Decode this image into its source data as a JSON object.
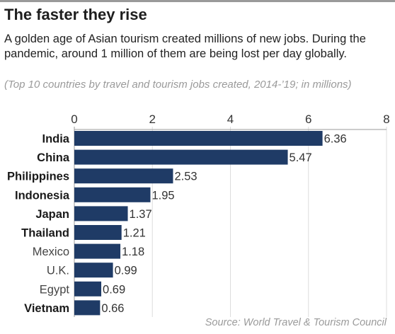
{
  "header": {
    "title": "The faster they rise",
    "subtitle": "A golden age of Asian tourism created millions of new jobs. During the pandemic, around 1 million of them are being lost per day globally.",
    "note": "(Top 10 countries by travel and tourism jobs created, 2014-’19; in millions)"
  },
  "footer": {
    "source": "Source: World Travel & Tourism Council"
  },
  "colors": {
    "bar": "#1f3b66",
    "axis": "#999999",
    "gridline": "#dddddd"
  },
  "chart_data": {
    "type": "bar",
    "orientation": "horizontal",
    "categories": [
      "India",
      "China",
      "Philippines",
      "Indonesia",
      "Japan",
      "Thailand",
      "Mexico",
      "U.K.",
      "Egypt",
      "Vietnam"
    ],
    "values": [
      6.36,
      5.47,
      2.53,
      1.95,
      1.37,
      1.21,
      1.18,
      0.99,
      0.69,
      0.66
    ],
    "value_labels": [
      "6.36",
      "5.47",
      "2.53",
      "1.95",
      "1.37",
      "1.21",
      "1.18",
      "0.99",
      "0.69",
      "0.66"
    ],
    "bold_categories": [
      "India",
      "China",
      "Philippines",
      "Indonesia",
      "Japan",
      "Thailand",
      "Vietnam"
    ],
    "xlim": [
      0,
      8
    ],
    "xticks": [
      0,
      2,
      4,
      6,
      8
    ],
    "xtick_position": "top",
    "grid": true
  }
}
